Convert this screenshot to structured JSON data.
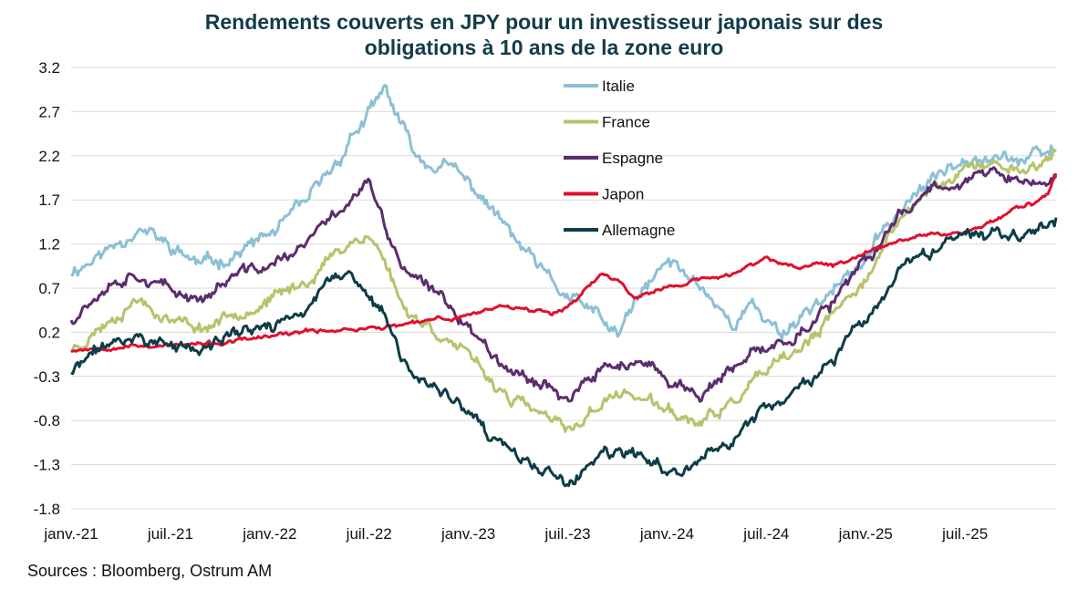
{
  "chart_data": {
    "type": "line",
    "title_line1": "Rendements couverts en JPY pour un investisseur japonais sur des",
    "title_line2": "obligations à 10 ans de la zone euro",
    "source": "Sources : Bloomberg, Ostrum AM",
    "xlabel": "",
    "ylabel": "",
    "ylim": [
      -1.8,
      3.2
    ],
    "yticks": [
      "3.2",
      "2.7",
      "2.2",
      "1.7",
      "1.2",
      "0.7",
      "0.2",
      "-0.3",
      "-0.8",
      "-1.3",
      "-1.8"
    ],
    "xticks": [
      "janv.-21",
      "juil.-21",
      "janv.-22",
      "juil.-22",
      "janv.-23",
      "juil.-23",
      "janv.-24",
      "juil.-24",
      "janv.-25",
      "juil.-25"
    ],
    "x_unit": "months since janv.-21",
    "xlim": [
      0,
      59.5
    ],
    "series": [
      {
        "name": "Italie",
        "color": "#8cc0d4",
        "noise": 0.07,
        "seed": 11,
        "x": [
          0,
          2,
          4,
          6,
          8,
          10,
          12,
          14,
          16,
          17,
          18,
          19,
          20,
          21,
          23,
          25,
          27,
          29,
          30,
          32,
          33,
          34,
          36,
          38,
          40,
          41,
          43,
          45,
          47,
          49,
          50,
          52,
          54,
          56,
          58,
          59.5
        ],
        "y": [
          0.9,
          1.1,
          1.4,
          1.15,
          0.95,
          1.1,
          1.3,
          1.6,
          2.1,
          2.45,
          2.65,
          2.95,
          2.5,
          2.15,
          2.05,
          1.7,
          1.2,
          0.75,
          0.6,
          0.35,
          0.15,
          0.5,
          1.0,
          0.75,
          0.3,
          0.5,
          0.2,
          0.55,
          0.8,
          1.3,
          1.6,
          1.9,
          2.25,
          2.2,
          2.15,
          2.25
        ]
      },
      {
        "name": "France",
        "color": "#b5c46b",
        "noise": 0.06,
        "seed": 23,
        "x": [
          0,
          2,
          4,
          6,
          8,
          10,
          12,
          14,
          16,
          17,
          18,
          19,
          20,
          21,
          23,
          25,
          27,
          29,
          30,
          32,
          33,
          34,
          36,
          38,
          40,
          41,
          43,
          45,
          47,
          49,
          50,
          52,
          54,
          56,
          58,
          59.5
        ],
        "y": [
          0.0,
          0.3,
          0.6,
          0.35,
          0.25,
          0.45,
          0.55,
          0.75,
          1.1,
          1.25,
          1.3,
          1.0,
          0.5,
          0.35,
          0.1,
          -0.3,
          -0.6,
          -0.8,
          -0.95,
          -0.6,
          -0.5,
          -0.5,
          -0.7,
          -0.85,
          -0.6,
          -0.4,
          -0.15,
          0.15,
          0.6,
          1.1,
          1.45,
          1.85,
          2.05,
          2.1,
          2.05,
          2.25
        ]
      },
      {
        "name": "Espagne",
        "color": "#5b2d6e",
        "noise": 0.06,
        "seed": 37,
        "x": [
          0,
          2,
          4,
          6,
          8,
          10,
          12,
          14,
          16,
          17,
          18,
          19,
          20,
          21,
          23,
          25,
          27,
          29,
          30,
          32,
          33,
          34,
          36,
          38,
          40,
          41,
          43,
          45,
          47,
          49,
          50,
          52,
          54,
          56,
          58,
          59.5
        ],
        "y": [
          0.35,
          0.75,
          0.9,
          0.65,
          0.6,
          0.85,
          0.95,
          1.15,
          1.55,
          1.75,
          1.9,
          1.35,
          0.95,
          0.75,
          0.5,
          0.05,
          -0.25,
          -0.4,
          -0.55,
          -0.25,
          -0.15,
          -0.15,
          -0.35,
          -0.5,
          -0.25,
          -0.1,
          0.1,
          0.35,
          0.75,
          1.2,
          1.55,
          1.85,
          1.95,
          2.0,
          1.85,
          1.95
        ]
      },
      {
        "name": "Japon",
        "color": "#e0102e",
        "noise": 0.02,
        "seed": 53,
        "x": [
          0,
          3,
          6,
          9,
          12,
          15,
          18,
          20,
          21,
          22,
          23,
          24,
          25,
          26,
          27,
          28,
          29,
          30,
          32,
          33,
          34,
          36,
          38,
          40,
          42,
          44,
          45,
          46,
          48,
          50,
          52,
          53,
          54,
          55,
          56,
          57,
          58,
          59,
          59.5
        ],
        "y": [
          0.0,
          0.05,
          0.05,
          0.07,
          0.15,
          0.22,
          0.25,
          0.28,
          0.3,
          0.35,
          0.35,
          0.4,
          0.45,
          0.5,
          0.5,
          0.45,
          0.42,
          0.5,
          0.85,
          0.8,
          0.6,
          0.7,
          0.8,
          0.85,
          1.05,
          0.9,
          1.0,
          0.95,
          1.1,
          1.25,
          1.35,
          1.3,
          1.35,
          1.4,
          1.5,
          1.6,
          1.65,
          1.75,
          2.0
        ]
      },
      {
        "name": "Allemagne",
        "color": "#0d3d47",
        "noise": 0.06,
        "seed": 71,
        "x": [
          0,
          2,
          4,
          6,
          8,
          10,
          12,
          14,
          16,
          17,
          18,
          19,
          20,
          21,
          23,
          25,
          27,
          29,
          30,
          32,
          33,
          34,
          36,
          38,
          40,
          41,
          43,
          45,
          47,
          49,
          50,
          52,
          54,
          56,
          58,
          59.5
        ],
        "y": [
          -0.25,
          0.05,
          0.15,
          0.05,
          0.0,
          0.2,
          0.25,
          0.45,
          0.8,
          0.85,
          0.6,
          0.35,
          -0.15,
          -0.3,
          -0.55,
          -0.95,
          -1.25,
          -1.4,
          -1.55,
          -1.2,
          -1.2,
          -1.2,
          -1.4,
          -1.25,
          -1.0,
          -0.8,
          -0.55,
          -0.3,
          0.1,
          0.55,
          0.85,
          1.1,
          1.3,
          1.35,
          1.35,
          1.5
        ]
      }
    ]
  }
}
